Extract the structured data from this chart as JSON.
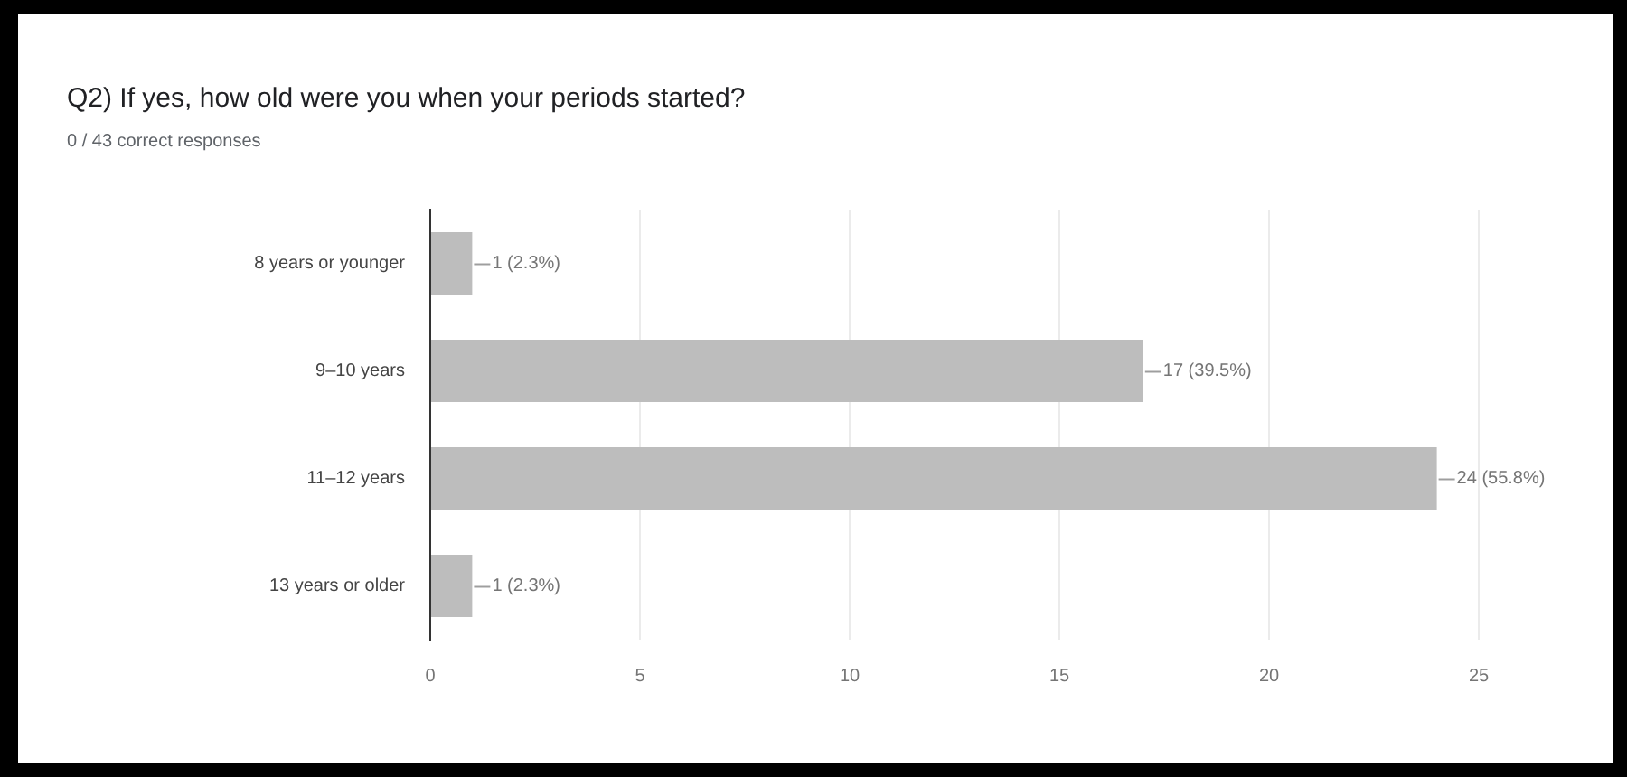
{
  "chart_data": {
    "type": "bar",
    "orientation": "horizontal",
    "title": "Q2) If yes, how old were you when your periods started?",
    "subtitle": "0 / 43 correct responses",
    "categories": [
      "8 years or younger",
      "9–10 years",
      "11–12 years",
      "13 years or older"
    ],
    "values": [
      1,
      17,
      24,
      1
    ],
    "value_labels": [
      "1 (2.3%)",
      "17 (39.5%)",
      "24 (55.8%)",
      "1 (2.3%)"
    ],
    "color": "#bdbdbd",
    "xlim": [
      0,
      25
    ],
    "xticks": [
      0,
      5,
      10,
      15,
      20,
      25
    ],
    "grid": "x",
    "legend": false
  }
}
